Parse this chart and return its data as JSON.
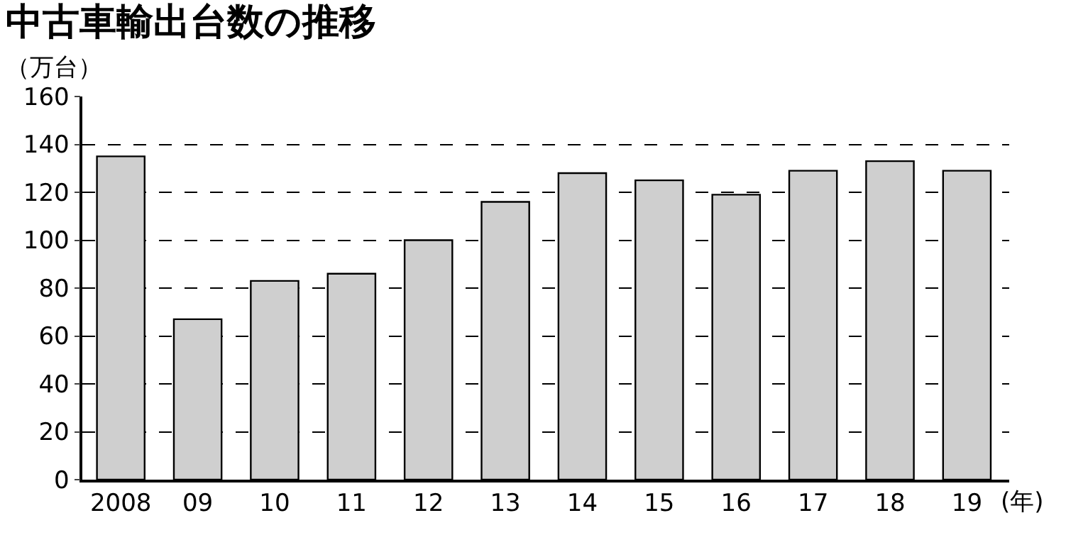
{
  "chart_data": {
    "type": "bar",
    "title": "中古車輸出台数の推移",
    "ylabel": "（万台）",
    "xlabel": "(年)",
    "categories": [
      "2008",
      "09",
      "10",
      "11",
      "12",
      "13",
      "14",
      "15",
      "16",
      "17",
      "18",
      "19"
    ],
    "values": [
      135,
      67,
      83,
      86,
      100,
      116,
      128,
      125,
      119,
      129,
      133,
      129
    ],
    "color": "#cfcfcf",
    "ylim": [
      0,
      160
    ],
    "yticks": [
      0,
      20,
      40,
      60,
      80,
      100,
      120,
      140,
      160
    ],
    "grid": "y",
    "legend": false
  }
}
